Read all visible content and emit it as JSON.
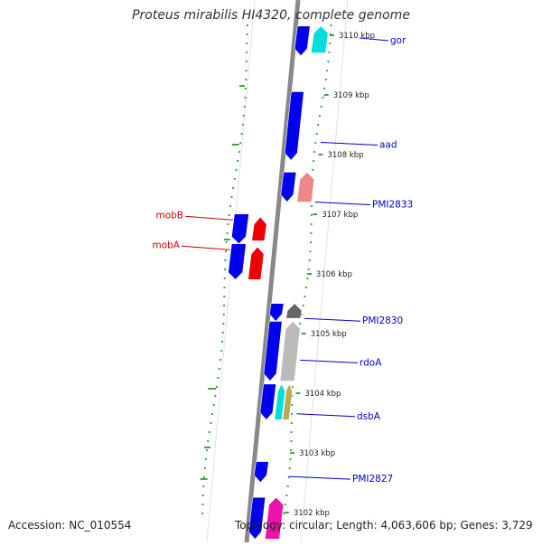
{
  "title": "Proteus mirabilis HI4320, complete genome",
  "footer": {
    "accession": "Accession: NC_010554",
    "summary": "Topology: circular; Length: 4,063,606 bp; Genes: 3,729"
  },
  "colors": {
    "forward_gene": "#0000ee",
    "reverse_gene": "#ee0000",
    "backbone": "#888888",
    "gc_ticks": "#1a8a1a",
    "label_blue": "#0000cc",
    "label_red": "#cc0000"
  },
  "scale": {
    "unit": "kbp",
    "ticks": [
      "3110 kbp",
      "3109 kbp",
      "3108 kbp",
      "3107 kbp",
      "3106 kbp",
      "3105 kbp",
      "3104 kbp",
      "3103 kbp",
      "3102 kbp"
    ]
  },
  "gene_labels": {
    "right": [
      "gor",
      "aad",
      "PMI2833",
      "PMI2830",
      "rdoA",
      "dsbA",
      "PMI2827"
    ],
    "left": [
      "mobB",
      "mobA"
    ]
  },
  "features": [
    {
      "name": "forward-gene",
      "track": "forward",
      "color": "#0000ee",
      "kbp_start": 3110.2,
      "kbp_end": 3109.7
    },
    {
      "name": "reverse-gene",
      "track": "outer",
      "color": "#00dddd",
      "kbp_start": 3110.2,
      "kbp_end": 3109.75
    },
    {
      "name": "forward-gene",
      "track": "forward",
      "color": "#0000ee",
      "kbp_start": 3109.1,
      "kbp_end": 3107.95
    },
    {
      "name": "forward-gene",
      "track": "forward",
      "color": "#0000ee",
      "kbp_start": 3107.75,
      "kbp_end": 3107.25
    },
    {
      "name": "reverse-gene",
      "track": "outer",
      "color": "#ee8888",
      "kbp_start": 3107.75,
      "kbp_end": 3107.25
    },
    {
      "name": "forward-gene",
      "track": "left1",
      "color": "#0000ee",
      "kbp_start": 3107.05,
      "kbp_end": 3106.55
    },
    {
      "name": "reverse-gene",
      "track": "left2",
      "color": "#ee0000",
      "kbp_start": 3107.0,
      "kbp_end": 3106.6
    },
    {
      "name": "forward-gene",
      "track": "left1",
      "color": "#0000ee",
      "kbp_start": 3106.55,
      "kbp_end": 3105.95
    },
    {
      "name": "reverse-gene",
      "track": "left2",
      "color": "#ee0000",
      "kbp_start": 3106.5,
      "kbp_end": 3105.95
    },
    {
      "name": "forward-gene",
      "track": "forward",
      "color": "#0000ee",
      "kbp_start": 3105.55,
      "kbp_end": 3105.25
    },
    {
      "name": "reverse-gene",
      "track": "outer",
      "color": "#666666",
      "kbp_start": 3105.55,
      "kbp_end": 3105.3
    },
    {
      "name": "forward-gene",
      "track": "forward",
      "color": "#0000ee",
      "kbp_start": 3105.25,
      "kbp_end": 3104.25
    },
    {
      "name": "reverse-gene",
      "track": "outer",
      "color": "#bbbbbb",
      "kbp_start": 3105.25,
      "kbp_end": 3104.25
    },
    {
      "name": "forward-gene",
      "track": "forward",
      "color": "#0000ee",
      "kbp_start": 3104.2,
      "kbp_end": 3103.6
    },
    {
      "name": "reverse-gene",
      "track": "outer1",
      "color": "#00dddd",
      "kbp_start": 3104.2,
      "kbp_end": 3103.6
    },
    {
      "name": "reverse-gene",
      "track": "outer2",
      "color": "#bbaa55",
      "kbp_start": 3104.2,
      "kbp_end": 3103.6
    },
    {
      "name": "forward-gene",
      "track": "forward",
      "color": "#0000ee",
      "kbp_start": 3102.9,
      "kbp_end": 3102.55
    },
    {
      "name": "forward-gene",
      "track": "forward",
      "color": "#0000ee",
      "kbp_start": 3102.3,
      "kbp_end": 3101.6
    },
    {
      "name": "reverse-gene",
      "track": "outer",
      "color": "#ee11aa",
      "kbp_start": 3102.3,
      "kbp_end": 3101.6
    }
  ]
}
